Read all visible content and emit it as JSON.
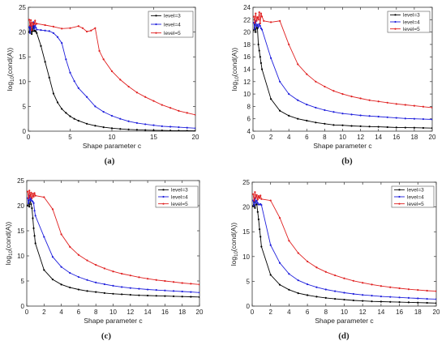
{
  "chart_data": [
    {
      "type": "line",
      "panel_label": "(a)",
      "xlabel": "Shape parameter c",
      "ylabel_base": "log",
      "ylabel_sub": "10",
      "ylabel_rest": "(cond(A))",
      "xlim": [
        0,
        20
      ],
      "ylim": [
        0,
        25
      ],
      "xticks": [
        0,
        5,
        10,
        15,
        20
      ],
      "yticks": [
        0,
        5,
        10,
        15,
        20,
        25
      ],
      "legend_position": "top-right",
      "series": [
        {
          "name": "level=3",
          "color": "#000000",
          "x": [
            0.1,
            0.2,
            0.3,
            0.4,
            0.5,
            0.6,
            0.7,
            0.8,
            0.9,
            1,
            1.5,
            2,
            2.5,
            3,
            3.5,
            4,
            4.5,
            5,
            5.5,
            6,
            7,
            8,
            9,
            10,
            11,
            12,
            13,
            14,
            15,
            16,
            17,
            18,
            19,
            20
          ],
          "y": [
            20,
            21.3,
            20.5,
            19.6,
            20.2,
            21.2,
            20.2,
            20.3,
            20.1,
            19.8,
            17.2,
            14,
            10.8,
            7.6,
            5.8,
            4.5,
            3.7,
            3.0,
            2.5,
            2.1,
            1.5,
            1.1,
            0.8,
            0.6,
            0.45,
            0.35,
            0.28,
            0.22,
            0.18,
            0.15,
            0.12,
            0.1,
            0.08,
            0.06
          ]
        },
        {
          "name": "level=4",
          "color": "#1f1fdc",
          "x": [
            0.1,
            0.2,
            0.3,
            0.4,
            0.5,
            0.6,
            0.7,
            0.8,
            0.9,
            1,
            1.5,
            2,
            2.5,
            3,
            3.5,
            4,
            4.5,
            5,
            5.5,
            6,
            7,
            8,
            9,
            10,
            11,
            12,
            13,
            14,
            15,
            16,
            17,
            18,
            19,
            20
          ],
          "y": [
            21,
            19.8,
            21.8,
            20.4,
            21,
            22,
            20.7,
            21.3,
            20.9,
            20.5,
            20.4,
            20.3,
            20.2,
            19.8,
            19,
            17.8,
            14.5,
            11.8,
            10.1,
            8.7,
            6.9,
            5.0,
            3.9,
            3.1,
            2.5,
            2.0,
            1.65,
            1.4,
            1.2,
            1.0,
            0.9,
            0.8,
            0.7,
            0.6
          ]
        },
        {
          "name": "level=5",
          "color": "#e02020",
          "x": [
            0.1,
            0.2,
            0.3,
            0.4,
            0.5,
            0.6,
            0.7,
            0.8,
            0.9,
            1,
            2,
            3,
            4,
            5,
            6,
            6.5,
            7,
            7.5,
            8,
            8.5,
            9,
            10,
            11,
            12,
            13,
            14,
            15,
            16,
            17,
            18,
            19,
            20
          ],
          "y": [
            22.5,
            21.3,
            22.4,
            20.4,
            21.9,
            21.5,
            21.7,
            22.3,
            21.6,
            21.7,
            21.4,
            21.1,
            20.7,
            20.8,
            21.2,
            20.8,
            20.1,
            20.3,
            20.8,
            16.2,
            14.5,
            12.1,
            10.4,
            9.0,
            7.8,
            6.9,
            6.1,
            5.3,
            4.7,
            4.1,
            3.7,
            3.3
          ]
        }
      ]
    },
    {
      "type": "line",
      "panel_label": "(b)",
      "xlabel": "Shape parameter c",
      "ylabel_base": "log",
      "ylabel_sub": "10",
      "ylabel_rest": "(cond(A))",
      "xlim": [
        0,
        20
      ],
      "ylim": [
        4,
        24
      ],
      "xticks": [
        0,
        2,
        4,
        6,
        8,
        10,
        12,
        14,
        16,
        18,
        20
      ],
      "yticks": [
        4,
        6,
        8,
        10,
        12,
        14,
        16,
        18,
        20,
        22,
        24
      ],
      "legend_position": "top-right",
      "series": [
        {
          "name": "level=3",
          "color": "#000000",
          "x": [
            0.1,
            0.2,
            0.3,
            0.4,
            0.5,
            0.6,
            0.7,
            0.8,
            0.9,
            1,
            2,
            3,
            4,
            5,
            6,
            7,
            8,
            9,
            10,
            11,
            12,
            13,
            14,
            15,
            16,
            17,
            18,
            19,
            20
          ],
          "y": [
            20.3,
            21.2,
            20,
            21,
            20.6,
            18,
            17,
            16,
            15,
            14,
            9.2,
            7.3,
            6.5,
            6.0,
            5.7,
            5.4,
            5.2,
            5.0,
            4.95,
            4.85,
            4.8,
            4.75,
            4.7,
            4.65,
            4.6,
            4.58,
            4.56,
            4.53,
            4.5
          ]
        },
        {
          "name": "level=4",
          "color": "#1f1fdc",
          "x": [
            0.1,
            0.2,
            0.3,
            0.4,
            0.5,
            0.6,
            0.7,
            0.8,
            0.9,
            1,
            2,
            3,
            4,
            5,
            6,
            7,
            8,
            9,
            10,
            11,
            12,
            13,
            14,
            15,
            16,
            17,
            18,
            19,
            20
          ],
          "y": [
            21.5,
            20.5,
            21.8,
            21,
            21.2,
            20.8,
            21.3,
            21,
            20.6,
            20.4,
            15.8,
            12,
            10,
            9,
            8.3,
            7.8,
            7.4,
            7.1,
            6.85,
            6.7,
            6.55,
            6.45,
            6.35,
            6.25,
            6.15,
            6.05,
            6.0,
            5.95,
            5.9
          ]
        },
        {
          "name": "level=5",
          "color": "#e02020",
          "x": [
            0.1,
            0.2,
            0.3,
            0.4,
            0.5,
            0.6,
            0.7,
            0.8,
            0.9,
            1,
            1.2,
            2,
            3,
            4,
            5,
            6,
            7,
            8,
            9,
            10,
            11,
            12,
            13,
            14,
            15,
            16,
            17,
            18,
            19,
            20
          ],
          "y": [
            22.5,
            21.5,
            23,
            21.8,
            22.4,
            22,
            23.2,
            21.4,
            23,
            22.5,
            21.8,
            21.6,
            21.8,
            18,
            14.8,
            13.2,
            12,
            11.2,
            10.5,
            10,
            9.6,
            9.3,
            9.0,
            8.8,
            8.6,
            8.4,
            8.25,
            8.1,
            7.95,
            7.8
          ]
        }
      ]
    },
    {
      "type": "line",
      "panel_label": "(c)",
      "xlabel": "Shape parameter c",
      "ylabel_base": "log",
      "ylabel_sub": "10",
      "ylabel_rest": "(cond(A))",
      "xlim": [
        0,
        20
      ],
      "ylim": [
        0,
        25
      ],
      "xticks": [
        0,
        2,
        4,
        6,
        8,
        10,
        12,
        14,
        16,
        18,
        20
      ],
      "yticks": [
        0,
        5,
        10,
        15,
        20,
        25
      ],
      "legend_position": "top-right",
      "series": [
        {
          "name": "level=3",
          "color": "#000000",
          "x": [
            0.1,
            0.2,
            0.3,
            0.4,
            0.5,
            0.6,
            0.7,
            0.8,
            0.9,
            1,
            2,
            3,
            4,
            5,
            6,
            7,
            8,
            9,
            10,
            11,
            12,
            13,
            14,
            15,
            16,
            17,
            18,
            19,
            20
          ],
          "y": [
            20,
            21,
            19.8,
            21.2,
            20.3,
            19.5,
            17.5,
            15.5,
            14,
            12.5,
            7.2,
            5.3,
            4.3,
            3.7,
            3.3,
            3.0,
            2.8,
            2.6,
            2.45,
            2.35,
            2.25,
            2.15,
            2.1,
            2.05,
            2.0,
            1.95,
            1.9,
            1.85,
            1.8
          ]
        },
        {
          "name": "level=4",
          "color": "#1f1fdc",
          "x": [
            0.1,
            0.2,
            0.3,
            0.4,
            0.5,
            0.6,
            0.7,
            0.8,
            0.9,
            1,
            2,
            3,
            4,
            5,
            6,
            7,
            8,
            9,
            10,
            11,
            12,
            13,
            14,
            15,
            16,
            17,
            18,
            19,
            20
          ],
          "y": [
            21.5,
            20.5,
            22,
            21,
            21.5,
            21,
            20.8,
            20.5,
            19,
            18,
            13.8,
            9.8,
            7.8,
            6.6,
            5.8,
            5.2,
            4.7,
            4.35,
            4.05,
            3.8,
            3.6,
            3.45,
            3.3,
            3.2,
            3.1,
            3.0,
            2.9,
            2.8,
            2.7
          ]
        },
        {
          "name": "level=5",
          "color": "#e02020",
          "x": [
            0.1,
            0.2,
            0.3,
            0.4,
            0.5,
            0.6,
            0.7,
            0.8,
            0.9,
            1,
            2,
            3,
            4,
            5,
            6,
            7,
            8,
            9,
            10,
            11,
            12,
            13,
            14,
            15,
            16,
            17,
            18,
            19,
            20
          ],
          "y": [
            22.8,
            21.5,
            23,
            21.8,
            22.6,
            21.5,
            22.4,
            21.8,
            22.5,
            22,
            21.7,
            19.3,
            14.3,
            11.8,
            10.2,
            9.1,
            8.2,
            7.5,
            6.9,
            6.45,
            6.1,
            5.75,
            5.45,
            5.2,
            5.0,
            4.8,
            4.6,
            4.45,
            4.3
          ]
        }
      ]
    },
    {
      "type": "line",
      "panel_label": "(d)",
      "xlabel": "Shape parameter c",
      "ylabel_base": "log",
      "ylabel_sub": "10",
      "ylabel_rest": "(cond(A))",
      "xlim": [
        0,
        20
      ],
      "ylim": [
        0,
        25
      ],
      "xticks": [
        0,
        2,
        4,
        6,
        8,
        10,
        12,
        14,
        16,
        18,
        20
      ],
      "yticks": [
        0,
        5,
        10,
        15,
        20,
        25
      ],
      "legend_position": "top-right",
      "series": [
        {
          "name": "level=3",
          "color": "#000000",
          "x": [
            0.1,
            0.2,
            0.3,
            0.4,
            0.5,
            0.6,
            0.7,
            0.8,
            0.9,
            1,
            2,
            3,
            4,
            5,
            6,
            7,
            8,
            9,
            10,
            11,
            12,
            13,
            14,
            15,
            16,
            17,
            18,
            19,
            20
          ],
          "y": [
            20.2,
            21,
            19.8,
            21,
            20.5,
            19,
            17.5,
            15.5,
            14,
            12,
            6.3,
            4.3,
            3.3,
            2.6,
            2.2,
            1.9,
            1.65,
            1.45,
            1.3,
            1.15,
            1.05,
            0.95,
            0.9,
            0.85,
            0.8,
            0.75,
            0.7,
            0.65,
            0.6
          ]
        },
        {
          "name": "level=4",
          "color": "#1f1fdc",
          "x": [
            0.1,
            0.2,
            0.3,
            0.4,
            0.5,
            0.6,
            0.7,
            0.8,
            0.9,
            1,
            2,
            3,
            4,
            5,
            6,
            7,
            8,
            9,
            10,
            11,
            12,
            13,
            14,
            15,
            16,
            17,
            18,
            19,
            20
          ],
          "y": [
            21.3,
            20.3,
            21.8,
            20.8,
            21.3,
            20.8,
            20.5,
            20.5,
            20.6,
            20.4,
            12.3,
            8.7,
            6.5,
            5.2,
            4.4,
            3.8,
            3.35,
            3.0,
            2.7,
            2.45,
            2.25,
            2.1,
            1.95,
            1.85,
            1.75,
            1.65,
            1.55,
            1.45,
            1.4
          ]
        },
        {
          "name": "level=5",
          "color": "#e02020",
          "x": [
            0.1,
            0.2,
            0.3,
            0.4,
            0.5,
            0.6,
            0.7,
            0.8,
            0.9,
            1,
            2,
            3,
            4,
            5,
            6,
            7,
            8,
            9,
            10,
            11,
            12,
            13,
            14,
            15,
            16,
            17,
            18,
            19,
            20
          ],
          "y": [
            22.6,
            21.3,
            23,
            21.8,
            22.4,
            21.5,
            22.2,
            21.8,
            22.3,
            21.6,
            21.3,
            17.8,
            13.2,
            10.7,
            9.0,
            7.8,
            6.9,
            6.2,
            5.6,
            5.1,
            4.7,
            4.35,
            4.05,
            3.8,
            3.6,
            3.4,
            3.25,
            3.1,
            3.0
          ]
        }
      ]
    }
  ]
}
